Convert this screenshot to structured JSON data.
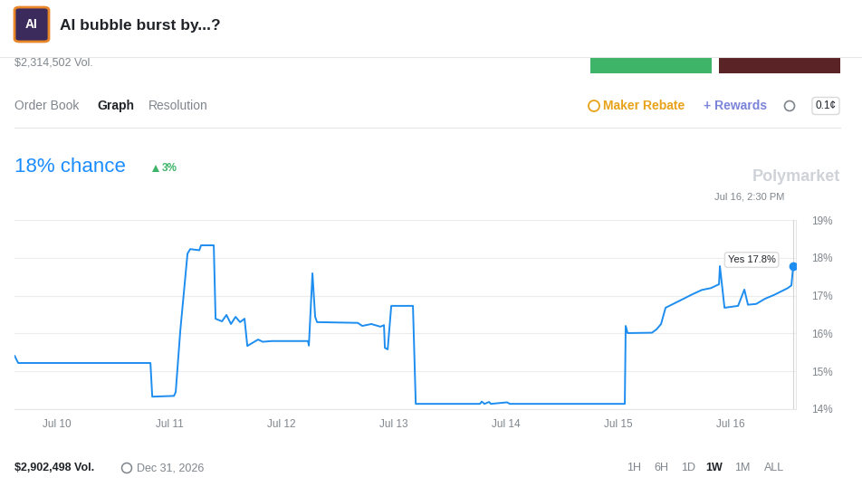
{
  "chart_data": {
    "type": "line",
    "title": "18% chance",
    "subtitle": "3%",
    "x": [
      9.621,
      9.653,
      10.831,
      10.847,
      11.04,
      11.056,
      11.097,
      11.161,
      11.185,
      11.266,
      11.282,
      11.395,
      11.411,
      11.468,
      11.508,
      11.548,
      11.589,
      11.629,
      11.669,
      11.694,
      11.75,
      11.79,
      11.831,
      11.911,
      12.234,
      12.242,
      12.274,
      12.298,
      12.315,
      12.677,
      12.718,
      12.798,
      12.879,
      12.911,
      12.919,
      12.944,
      12.976,
      13.169,
      13.194,
      13.766,
      13.782,
      13.806,
      13.847,
      13.863,
      14.008,
      14.032,
      15.056,
      15.064,
      15.081,
      15.298,
      15.339,
      15.379,
      15.419,
      15.5,
      15.581,
      15.661,
      15.742,
      15.823,
      15.895,
      15.903,
      15.944,
      16.065,
      16.121,
      16.153,
      16.226,
      16.306,
      16.387,
      16.508,
      16.54,
      16.556
    ],
    "values": [
      15.41,
      15.22,
      15.22,
      14.33,
      14.35,
      14.45,
      16.08,
      18.11,
      18.23,
      18.2,
      18.33,
      18.33,
      16.39,
      16.32,
      16.49,
      16.25,
      16.44,
      16.3,
      16.39,
      15.67,
      15.77,
      15.84,
      15.78,
      15.8,
      15.8,
      15.68,
      17.59,
      16.44,
      16.3,
      16.28,
      16.2,
      16.25,
      16.18,
      16.22,
      15.62,
      15.58,
      16.73,
      16.73,
      14.14,
      14.14,
      14.2,
      14.14,
      14.19,
      14.14,
      14.18,
      14.14,
      14.14,
      16.2,
      16.01,
      16.02,
      16.11,
      16.25,
      16.68,
      16.8,
      16.92,
      17.04,
      17.15,
      17.2,
      17.3,
      17.78,
      16.68,
      16.73,
      17.16,
      16.76,
      16.78,
      16.92,
      17.02,
      17.2,
      17.27,
      17.78
    ],
    "color": "#1d8df0",
    "xlim": [
      9.62,
      16.58
    ],
    "xticks": [
      {
        "value": 10,
        "label": "Jul 10"
      },
      {
        "value": 11,
        "label": "Jul 11"
      },
      {
        "value": 12,
        "label": "Jul 12"
      },
      {
        "value": 13,
        "label": "Jul 13"
      },
      {
        "value": 14,
        "label": "Jul 14"
      },
      {
        "value": 15,
        "label": "Jul 15"
      },
      {
        "value": 16,
        "label": "Jul 16"
      }
    ],
    "ylim": [
      14,
      19
    ],
    "yticks": [
      {
        "value": 14,
        "label": "14%"
      },
      {
        "value": 15,
        "label": "15%"
      },
      {
        "value": 16,
        "label": "16%"
      },
      {
        "value": 17,
        "label": "17%"
      },
      {
        "value": 18,
        "label": "18%"
      },
      {
        "value": 19,
        "label": "19%"
      }
    ],
    "grid": true,
    "annotations": [
      {
        "text": "Yes 17.8%"
      },
      {
        "text": "Jul 16, 2:30 PM"
      }
    ]
  },
  "page": {
    "logo": "AI",
    "title": "AI bubble burst by...?",
    "volume": "$2,314,502 Vol.",
    "tabs": [
      "Order Book",
      "Graph",
      "Resolution"
    ],
    "active_tab": "Graph",
    "maker_rebate": "Maker Rebate",
    "rewards": "+ Rewards",
    "tick_size": "0.1¢",
    "watermark": "Polymarket",
    "total_volume": "$2,902,498 Vol.",
    "end_date": "Dec 31, 2026",
    "ranges": [
      "1H",
      "6H",
      "1D",
      "1W",
      "1M",
      "ALL"
    ],
    "active_range": "1W"
  }
}
